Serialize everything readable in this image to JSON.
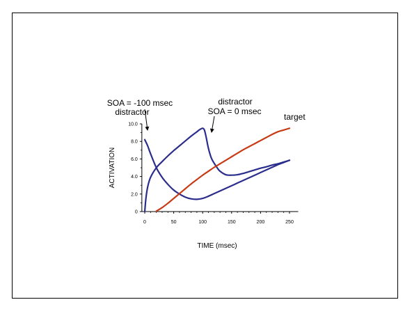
{
  "chart_data": {
    "type": "line",
    "xlabel": "TIME (msec)",
    "ylabel": "ACTIVATION",
    "xlim": [
      -5,
      265
    ],
    "ylim": [
      0,
      10
    ],
    "x_ticks": [
      "0",
      "50",
      "100",
      "150",
      "200",
      "250"
    ],
    "x_tick_values": [
      0,
      50,
      100,
      150,
      200,
      250
    ],
    "y_ticks": [
      "0",
      "2.0",
      "4.0",
      "6.0",
      "8.0",
      "10.0"
    ],
    "y_tick_values": [
      0,
      2,
      4,
      6,
      8,
      10
    ],
    "grid": false,
    "series": [
      {
        "color": "#2b2d8c",
        "x": [
          0,
          5,
          10,
          20,
          30,
          40,
          50,
          60,
          70,
          80,
          90,
          100,
          110,
          120,
          130,
          140,
          150,
          160,
          170,
          180,
          190,
          200,
          210,
          220,
          230,
          240,
          250
        ],
        "y": [
          8.2,
          7.5,
          6.6,
          5.0,
          3.9,
          3.1,
          2.45,
          2.0,
          1.65,
          1.45,
          1.4,
          1.5,
          1.75,
          2.05,
          2.35,
          2.65,
          2.95,
          3.25,
          3.55,
          3.85,
          4.15,
          4.45,
          4.75,
          5.05,
          5.35,
          5.6,
          5.85
        ]
      },
      {
        "color": "#2b2d8c",
        "x": [
          0,
          2,
          5,
          10,
          20,
          30,
          40,
          50,
          60,
          70,
          80,
          90,
          95,
          100,
          103,
          106,
          110,
          115,
          120,
          125,
          130,
          140,
          150,
          160,
          170,
          180,
          190,
          200,
          210,
          220,
          230,
          240,
          250
        ],
        "y": [
          0,
          1.5,
          2.8,
          3.9,
          5.0,
          5.7,
          6.35,
          6.95,
          7.5,
          8.05,
          8.6,
          9.1,
          9.35,
          9.5,
          9.3,
          8.5,
          7.2,
          6.1,
          5.5,
          5.0,
          4.6,
          4.2,
          4.15,
          4.2,
          4.35,
          4.55,
          4.75,
          4.95,
          5.1,
          5.3,
          5.45,
          5.65,
          5.85
        ]
      },
      {
        "color": "#c83a14",
        "x": [
          20,
          30,
          40,
          50,
          60,
          70,
          80,
          90,
          100,
          110,
          120,
          130,
          140,
          150,
          160,
          170,
          180,
          190,
          200,
          210,
          220,
          230,
          240,
          250
        ],
        "y": [
          0.05,
          0.45,
          0.95,
          1.5,
          2.05,
          2.6,
          3.15,
          3.65,
          4.15,
          4.6,
          5.05,
          5.45,
          5.85,
          6.25,
          6.65,
          7.05,
          7.4,
          7.75,
          8.1,
          8.45,
          8.8,
          9.1,
          9.3,
          9.5
        ]
      }
    ],
    "annotations": [
      {
        "lines": [
          "distractor",
          "SOA = -100 msec"
        ]
      },
      {
        "lines": [
          "distractor",
          "SOA = 0 msec"
        ]
      },
      {
        "lines": [
          "target"
        ]
      }
    ]
  }
}
